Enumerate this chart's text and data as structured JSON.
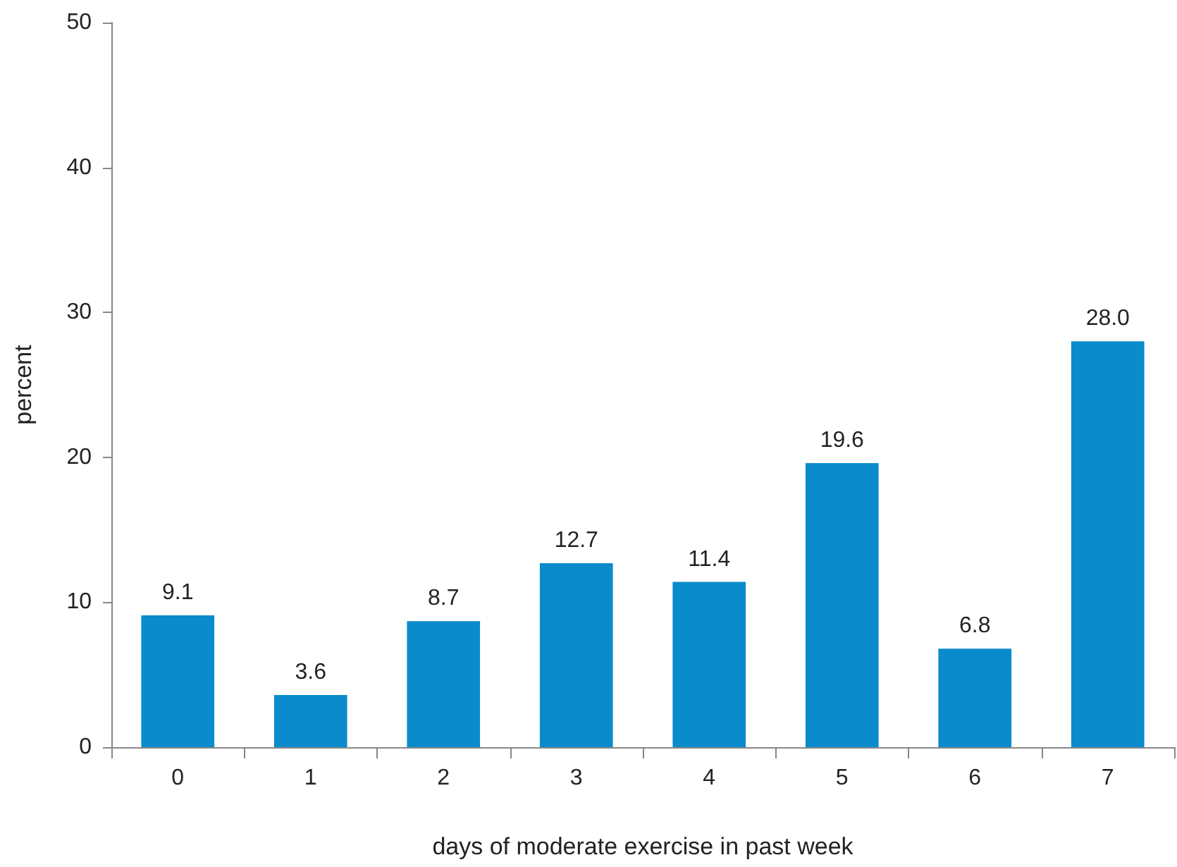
{
  "chart_data": {
    "type": "bar",
    "xlabel": "days of moderate exercise in past week",
    "ylabel": "percent",
    "categories": [
      "0",
      "1",
      "2",
      "3",
      "4",
      "5",
      "6",
      "7"
    ],
    "values": [
      9.1,
      3.6,
      8.7,
      12.7,
      11.4,
      19.6,
      6.8,
      28.0
    ],
    "value_labels": [
      "9.1",
      "3.6",
      "8.7",
      "12.7",
      "11.4",
      "19.6",
      "6.8",
      "28.0"
    ],
    "color": "#0a8bcc",
    "ylim": [
      0,
      50
    ],
    "yticks": [
      0,
      10,
      20,
      30,
      40,
      50
    ],
    "grid": false
  }
}
